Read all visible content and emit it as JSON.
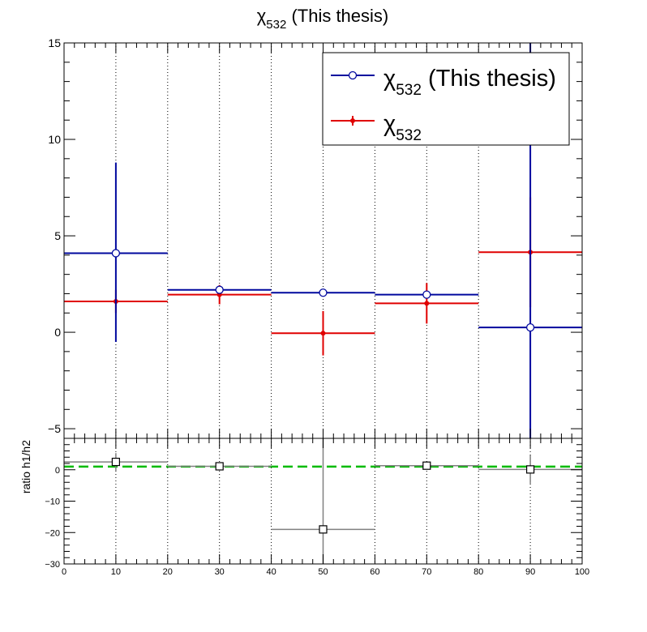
{
  "title": {
    "symbol": "χ",
    "subscript": "532",
    "suffix": " (This thesis)"
  },
  "legend": {
    "entries": [
      {
        "symbol": "χ",
        "subscript": "532",
        "suffix": " (This thesis)",
        "color": "#00089e",
        "marker": "open-circle"
      },
      {
        "symbol": "χ",
        "subscript": "532",
        "suffix": "",
        "color": "#e00000",
        "marker": "filled-circle"
      }
    ],
    "placement": "top-right"
  },
  "ratio_ylabel": "ratio h1/h2",
  "colors": {
    "series1": "#00089e",
    "series2": "#e00000",
    "ratio": "#000000",
    "ratio_errors": "#808080",
    "reference_line": "#00bb00",
    "grid": "#000000"
  },
  "chart_data": [
    {
      "type": "scatter",
      "panel": "main",
      "xlim": [
        0,
        100
      ],
      "ylim": [
        -5.5,
        15
      ],
      "yticks": [
        -5,
        0,
        5,
        10,
        15
      ],
      "grid": "vertical dotted",
      "series": [
        {
          "name": "χ532 (This thesis)",
          "x": [
            10,
            30,
            50,
            70,
            90
          ],
          "x_err": [
            10,
            10,
            10,
            10,
            10
          ],
          "y": [
            4.1,
            2.2,
            2.05,
            1.95,
            0.25
          ],
          "y_err_low": [
            4.6,
            0.15,
            0.1,
            0.12,
            6.0
          ],
          "y_err_high": [
            4.7,
            0.15,
            0.1,
            0.12,
            15.0
          ]
        },
        {
          "name": "χ532",
          "x": [
            10,
            30,
            50,
            70,
            90
          ],
          "x_err": [
            10,
            10,
            10,
            10,
            10
          ],
          "y": [
            1.6,
            1.95,
            -0.05,
            1.5,
            4.15
          ],
          "y_err_low": [
            0.6,
            0.5,
            1.15,
            1.05,
            2.85
          ],
          "y_err_high": [
            0.6,
            0.5,
            1.15,
            1.05,
            2.85
          ]
        }
      ]
    },
    {
      "type": "scatter",
      "panel": "ratio",
      "xlim": [
        0,
        100
      ],
      "ylim": [
        -30,
        10
      ],
      "xticks": [
        0,
        10,
        20,
        30,
        40,
        50,
        60,
        70,
        80,
        90,
        100
      ],
      "yticks": [
        -30,
        -20,
        -10,
        0
      ],
      "ylabel": "ratio h1/h2",
      "grid": "vertical dotted",
      "reference_line": 1,
      "series": [
        {
          "name": "ratio h1/h2",
          "x": [
            10,
            30,
            50,
            70,
            90
          ],
          "x_err": [
            10,
            10,
            10,
            10,
            10
          ],
          "y": [
            2.5,
            1.1,
            -19,
            1.3,
            0.1
          ],
          "y_err_low": [
            2.8,
            0.3,
            11,
            0.8,
            4.5
          ],
          "y_err_high": [
            2.8,
            0.3,
            30,
            0.8,
            4.5
          ]
        }
      ]
    }
  ]
}
